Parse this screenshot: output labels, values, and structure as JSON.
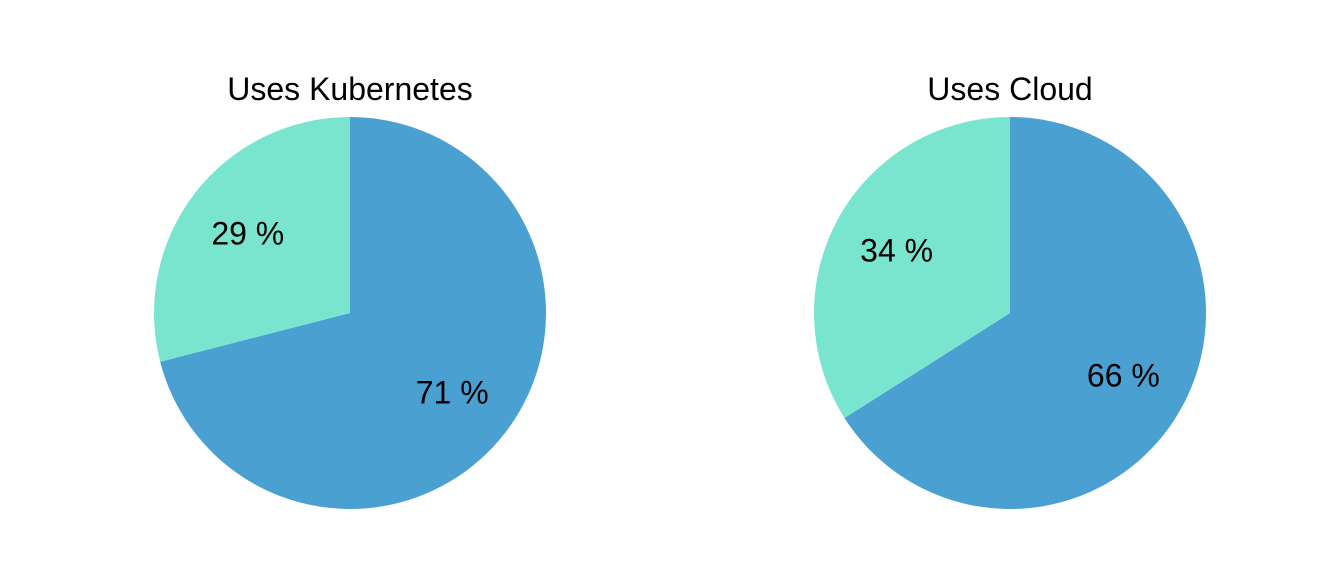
{
  "chart_data": [
    {
      "type": "pie",
      "title": "Uses Kubernetes",
      "start_angle": "12 o'clock",
      "direction": "clockwise",
      "slices": [
        {
          "value": 71,
          "label": "71 %",
          "color": "#4aa1d1"
        },
        {
          "value": 29,
          "label": "29 %",
          "color": "#7ae5cf"
        }
      ]
    },
    {
      "type": "pie",
      "title": "Uses Cloud",
      "start_angle": "12 o'clock",
      "direction": "clockwise",
      "slices": [
        {
          "value": 66,
          "label": "66 %",
          "color": "#4aa1d1"
        },
        {
          "value": 34,
          "label": "34 %",
          "color": "#7ae5cf"
        }
      ]
    }
  ]
}
